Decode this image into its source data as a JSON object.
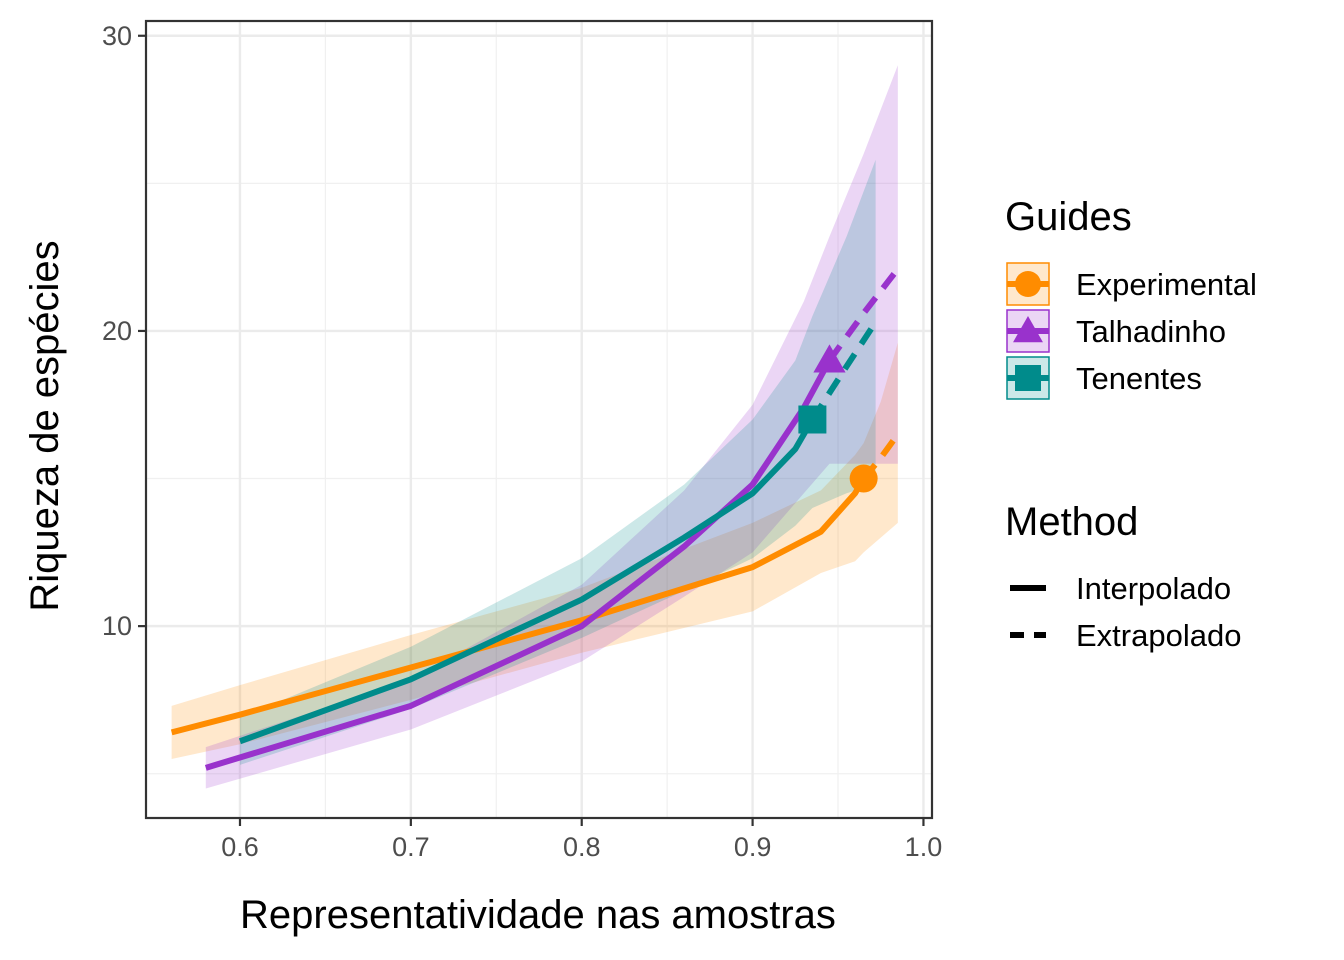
{
  "chart_data": {
    "type": "line",
    "xlabel": "Representatividade nas amostras",
    "ylabel": "Riqueza de espécies",
    "xlim": [
      0.545,
      1.005
    ],
    "ylim": [
      3.5,
      30.5
    ],
    "x_ticks": [
      0.6,
      0.7,
      0.8,
      0.9,
      1.0
    ],
    "x_tick_labels": [
      "0.6",
      "0.7",
      "0.8",
      "0.9",
      "1.0"
    ],
    "y_ticks": [
      10,
      20,
      30
    ],
    "y_tick_labels": [
      "10",
      "20",
      "30"
    ],
    "grid": true,
    "legend_position": "right",
    "legends": {
      "guides": {
        "title": "Guides",
        "items": [
          {
            "label": "Experimental",
            "shape": "circle",
            "color": "#ff8c00"
          },
          {
            "label": "Talhadinho",
            "shape": "triangle",
            "color": "#9932cc"
          },
          {
            "label": "Tenentes",
            "shape": "square",
            "color": "#008b8b"
          }
        ]
      },
      "method": {
        "title": "Method",
        "items": [
          {
            "label": "Interpolado",
            "style": "solid"
          },
          {
            "label": "Extrapolado",
            "style": "dashed"
          }
        ]
      }
    },
    "series": [
      {
        "name": "Experimental",
        "color": "#ff8c00",
        "shape": "circle",
        "observed": {
          "x": 0.965,
          "y": 15
        },
        "interpolated": [
          {
            "x": 0.56,
            "y": 6.4,
            "lo": 5.5,
            "hi": 7.3
          },
          {
            "x": 0.6,
            "y": 7.0,
            "lo": 6.0,
            "hi": 8.0
          },
          {
            "x": 0.7,
            "y": 8.6,
            "lo": 7.5,
            "hi": 9.7
          },
          {
            "x": 0.8,
            "y": 10.2,
            "lo": 9.1,
            "hi": 11.3
          },
          {
            "x": 0.9,
            "y": 12.0,
            "lo": 10.5,
            "hi": 13.5
          },
          {
            "x": 0.94,
            "y": 13.2,
            "lo": 11.8,
            "hi": 14.6
          },
          {
            "x": 0.96,
            "y": 14.5,
            "lo": 12.2,
            "hi": 15.8
          },
          {
            "x": 0.965,
            "y": 15.0,
            "lo": 12.5,
            "hi": 16.2
          }
        ],
        "extrapolated": [
          {
            "x": 0.965,
            "y": 15.0,
            "lo": 12.5,
            "hi": 16.2
          },
          {
            "x": 0.975,
            "y": 15.7,
            "lo": 13.0,
            "hi": 17.6
          },
          {
            "x": 0.985,
            "y": 16.5,
            "lo": 13.5,
            "hi": 19.6
          }
        ]
      },
      {
        "name": "Talhadinho",
        "color": "#9932cc",
        "shape": "triangle",
        "observed": {
          "x": 0.945,
          "y": 19
        },
        "interpolated": [
          {
            "x": 0.58,
            "y": 5.2,
            "lo": 4.5,
            "hi": 5.9
          },
          {
            "x": 0.7,
            "y": 7.3,
            "lo": 6.5,
            "hi": 8.2
          },
          {
            "x": 0.8,
            "y": 10.0,
            "lo": 8.8,
            "hi": 11.4
          },
          {
            "x": 0.86,
            "y": 12.7,
            "lo": 11.0,
            "hi": 14.6
          },
          {
            "x": 0.9,
            "y": 14.8,
            "lo": 12.5,
            "hi": 17.5
          },
          {
            "x": 0.93,
            "y": 17.4,
            "lo": 14.5,
            "hi": 21.0
          },
          {
            "x": 0.945,
            "y": 19.0,
            "lo": 15.5,
            "hi": 23.2
          }
        ],
        "extrapolated": [
          {
            "x": 0.945,
            "y": 19.0,
            "lo": 15.5,
            "hi": 23.2
          },
          {
            "x": 0.965,
            "y": 20.6,
            "lo": 15.5,
            "hi": 26.0
          },
          {
            "x": 0.985,
            "y": 22.1,
            "lo": 15.5,
            "hi": 29.0
          }
        ]
      },
      {
        "name": "Tenentes",
        "color": "#008b8b",
        "shape": "square",
        "observed": {
          "x": 0.935,
          "y": 17
        },
        "interpolated": [
          {
            "x": 0.6,
            "y": 6.1,
            "lo": 5.3,
            "hi": 6.9
          },
          {
            "x": 0.7,
            "y": 8.2,
            "lo": 7.2,
            "hi": 9.3
          },
          {
            "x": 0.8,
            "y": 10.9,
            "lo": 9.6,
            "hi": 12.3
          },
          {
            "x": 0.86,
            "y": 13.0,
            "lo": 11.2,
            "hi": 14.8
          },
          {
            "x": 0.9,
            "y": 14.5,
            "lo": 12.3,
            "hi": 17.0
          },
          {
            "x": 0.925,
            "y": 16.0,
            "lo": 13.4,
            "hi": 19.0
          },
          {
            "x": 0.935,
            "y": 17.0,
            "lo": 14.0,
            "hi": 20.5
          }
        ],
        "extrapolated": [
          {
            "x": 0.935,
            "y": 17.0,
            "lo": 14.0,
            "hi": 20.5
          },
          {
            "x": 0.955,
            "y": 18.8,
            "lo": 14.5,
            "hi": 23.2
          },
          {
            "x": 0.972,
            "y": 20.3,
            "lo": 14.8,
            "hi": 25.8
          }
        ]
      }
    ]
  }
}
